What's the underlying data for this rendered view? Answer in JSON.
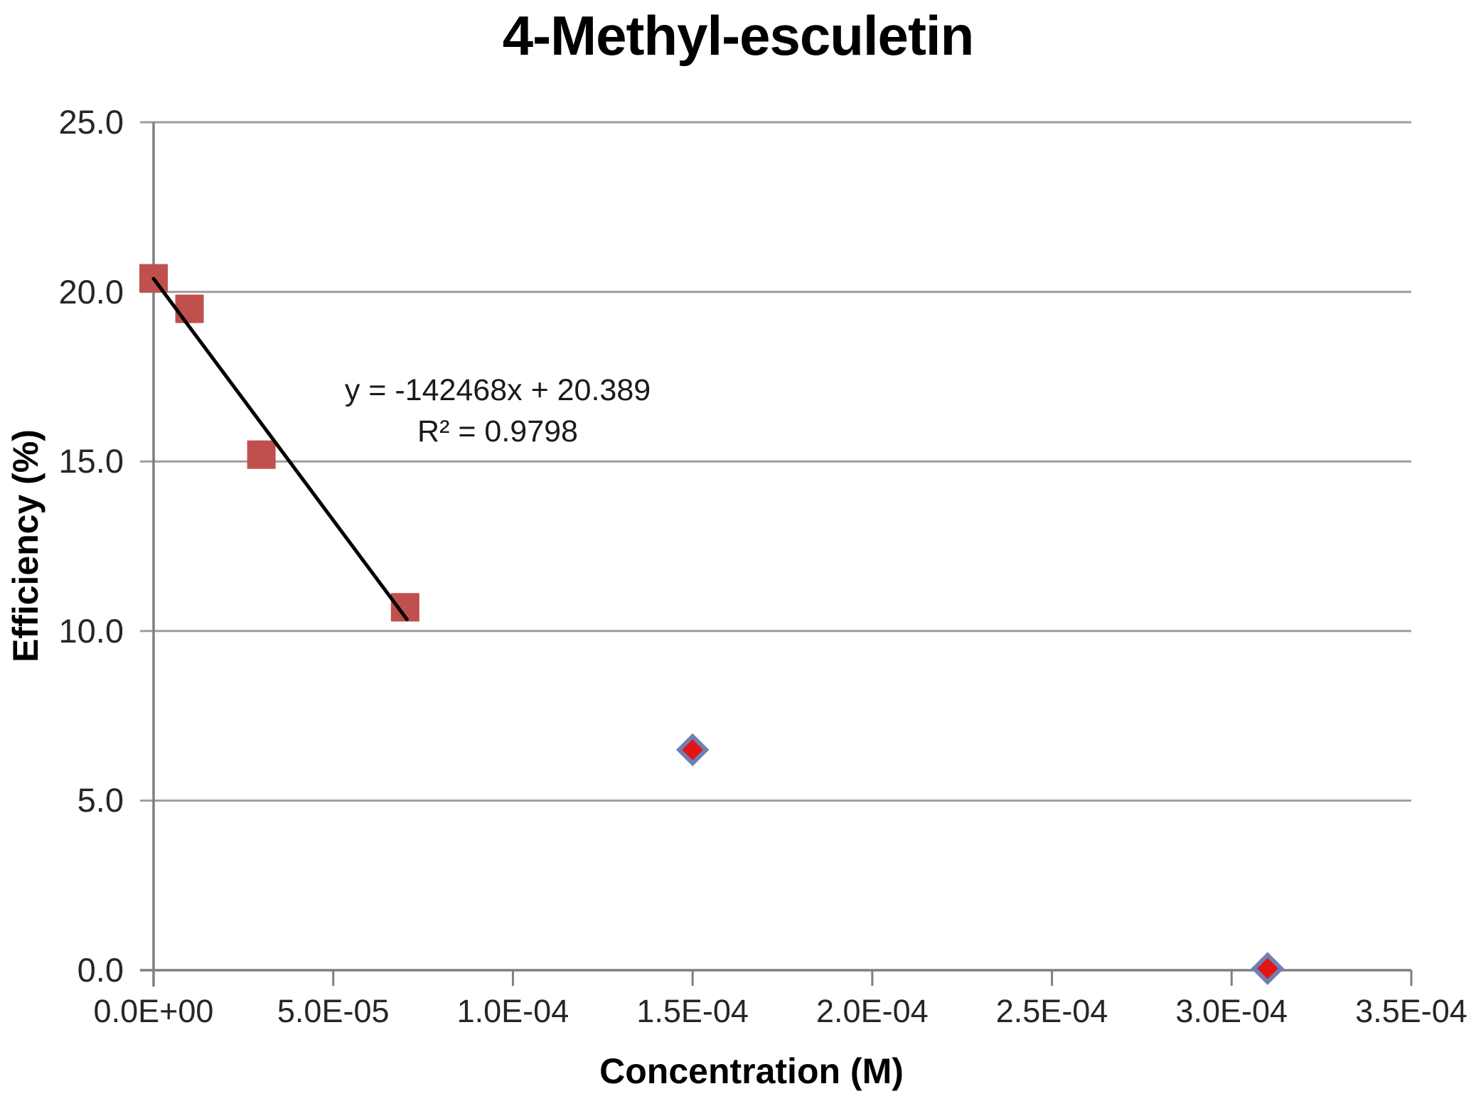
{
  "chart_data": {
    "type": "scatter",
    "title": "4-Methyl-esculetin",
    "xlabel": "Concentration (M)",
    "ylabel": "Efficiency (%)",
    "xlim": [
      0,
      0.00035
    ],
    "ylim": [
      0,
      25.0
    ],
    "grid": "horizontal-only",
    "legend": "none",
    "x_ticks": [
      {
        "label": "0.0E+00",
        "value": 0
      },
      {
        "label": "5.0E-05",
        "value": 5e-05
      },
      {
        "label": "1.0E-04",
        "value": 0.0001
      },
      {
        "label": "1.5E-04",
        "value": 0.00015
      },
      {
        "label": "2.0E-04",
        "value": 0.0002
      },
      {
        "label": "2.5E-04",
        "value": 0.00025
      },
      {
        "label": "3.0E-04",
        "value": 0.0003
      },
      {
        "label": "3.5E-04",
        "value": 0.00035
      }
    ],
    "y_ticks": [
      {
        "label": "25.0",
        "value": 25
      },
      {
        "label": "20.0",
        "value": 20
      },
      {
        "label": "15.0",
        "value": 15
      },
      {
        "label": "10.0",
        "value": 10
      },
      {
        "label": "5.0",
        "value": 5
      },
      {
        "label": "0.0",
        "value": 0
      }
    ],
    "series": [
      {
        "name": "square-markers",
        "marker": "square",
        "color": "#C0504D",
        "points": [
          [
            0.0,
            20.4
          ],
          [
            1e-05,
            19.5
          ],
          [
            3e-05,
            15.2
          ],
          [
            7e-05,
            10.7
          ]
        ]
      },
      {
        "name": "diamond-markers",
        "marker": "diamond",
        "color": "#E21414",
        "border_color": "#6F80B2",
        "points": [
          [
            0.00015,
            6.5
          ],
          [
            0.00031,
            0.05
          ]
        ]
      }
    ],
    "trendline": {
      "slope": -142468,
      "intercept": 20.389,
      "x_start": 0,
      "x_end": 7.05e-05,
      "color": "#000000"
    },
    "annotation": {
      "equation": "y = -142468x + 20.389",
      "r_squared": "R² = 0.9798"
    },
    "colors": {
      "gridline": "#9E9E9E",
      "axis": "#7F7F7F",
      "text": "#262626",
      "title": "#000000"
    }
  }
}
